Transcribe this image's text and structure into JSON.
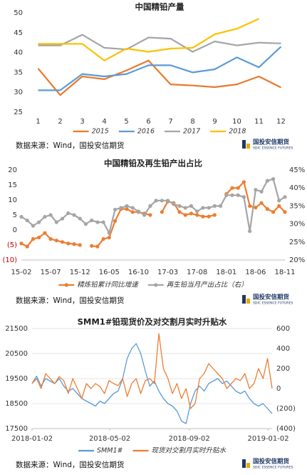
{
  "chart_data": [
    {
      "type": "line",
      "title": "中国精铅产量",
      "source": "数据来源：Wind，国投安信期货",
      "logo_name": "国投安信期货",
      "logo_sub": "SDIC ESSENCE FUTURES",
      "categories": [
        "1",
        "2",
        "3",
        "4",
        "5",
        "6",
        "7",
        "8",
        "9",
        "10",
        "11",
        "12"
      ],
      "ylim": [
        25,
        50
      ],
      "yticks": [
        25,
        30,
        35,
        40,
        45,
        50
      ],
      "grid": false,
      "legend": "bottom",
      "series": [
        {
          "name": "2015",
          "color": "#e8792b",
          "values": [
            36,
            29.3,
            34,
            33.3,
            35.5,
            38,
            32,
            31.7,
            31.3,
            32,
            34,
            31.2
          ]
        },
        {
          "name": "2016",
          "color": "#5b9bd5",
          "values": [
            30.5,
            30.5,
            34.6,
            34,
            34.6,
            36.8,
            36.8,
            35,
            35.8,
            38.8,
            36.3,
            41.5
          ]
        },
        {
          "name": "2017",
          "color": "#a5a5a5",
          "values": [
            41.8,
            41.8,
            44.5,
            41.2,
            40.8,
            43.8,
            43.5,
            40.2,
            42.8,
            41.8,
            42.5,
            42.3
          ]
        },
        {
          "name": "2018",
          "color": "#ffc000",
          "values": [
            42.2,
            42.2,
            42.2,
            38,
            41,
            40.2,
            41,
            41.2,
            44.6,
            46,
            48.5,
            null
          ]
        }
      ]
    },
    {
      "type": "line",
      "title": "中国精铅及再生铅产出占比",
      "source": "数据来源：Wind，国投安信期货",
      "logo_name": "国投安信期货",
      "logo_sub": "SDIC ESSENCE FUTURES",
      "categories": [
        "15-02",
        null,
        null,
        null,
        null,
        "15-07",
        null,
        null,
        null,
        null,
        "15-12",
        null,
        null,
        null,
        null,
        "16-05",
        null,
        null,
        null,
        null,
        "16-10",
        null,
        null,
        null,
        null,
        "17-03",
        null,
        null,
        null,
        null,
        "17-08",
        null,
        null,
        null,
        null,
        "18-01",
        null,
        null,
        null,
        null,
        "18-06",
        null,
        null,
        null,
        null,
        "18-11"
      ],
      "ylim": [
        -10,
        20
      ],
      "yticks": [
        {
          "value": -10,
          "label": "(10)"
        },
        {
          "value": -5,
          "label": "(5)"
        },
        0,
        5,
        10,
        15,
        20
      ],
      "negative_tick_color": "#c00000",
      "y2lim": [
        20,
        45
      ],
      "y2ticks": [
        {
          "value": 20,
          "label": "20%"
        },
        {
          "value": 25,
          "label": "25%"
        },
        {
          "value": 30,
          "label": "30%"
        },
        {
          "value": 35,
          "label": "35%"
        },
        {
          "value": 40,
          "label": "40%"
        },
        {
          "value": 45,
          "label": "45%"
        }
      ],
      "grid": false,
      "legend": "bottom",
      "markers": true,
      "series": [
        {
          "name": "精炼铅累计同比增速",
          "color": "#ed7d31",
          "values": [
            -4.5,
            -5.5,
            -3,
            -2.5,
            -1,
            -3,
            -3.5,
            -4,
            -4.5,
            -4.7,
            -5,
            null,
            -5.3,
            -5.5,
            -3,
            -2.5,
            3,
            7,
            7,
            6,
            6,
            5.5,
            5,
            null,
            6,
            9.5,
            9,
            6,
            5,
            5.5,
            5,
            4.5,
            4.5,
            5,
            null,
            12,
            14,
            14,
            16,
            8,
            7.5,
            9,
            7,
            6,
            8,
            6
          ]
        },
        {
          "name": "再生铅当月产出占比（右）",
          "color": "#a5a5a5",
          "axis": "y2",
          "values": [
            32,
            31,
            29.5,
            30.5,
            32,
            32.5,
            30.5,
            31.5,
            33,
            32.5,
            31.5,
            30,
            31,
            30.5,
            30.5,
            27.5,
            34,
            34.5,
            35,
            34.5,
            33.5,
            32.5,
            35,
            36.5,
            36.5,
            36.5,
            35.5,
            35,
            34.5,
            35,
            33.5,
            34.5,
            34.5,
            35,
            35,
            38,
            38,
            38,
            37.5,
            28,
            39.5,
            39,
            42,
            42.5,
            36.5,
            37.5
          ]
        }
      ]
    },
    {
      "type": "line",
      "title": "SMM1#铅现货价及对交割月实时升贴水",
      "source": "数据来源：Wind，国投安信期货",
      "logo_name": "国投安信期货",
      "logo_sub": "SDIC ESSENCE FUTURES",
      "x": [
        "2018-01-02",
        "2018-01-09",
        "2018-01-16",
        "2018-01-23",
        "2018-01-30",
        "2018-02-06",
        "2018-02-13",
        "2018-02-20",
        "2018-02-27",
        "2018-03-06",
        "2018-03-13",
        "2018-03-20",
        "2018-03-27",
        "2018-04-03",
        "2018-04-10",
        "2018-04-17",
        "2018-04-24",
        "2018-05-01",
        "2018-05-08",
        "2018-05-15",
        "2018-05-22",
        "2018-05-29",
        "2018-06-05",
        "2018-06-12",
        "2018-06-19",
        "2018-06-26",
        "2018-07-03",
        "2018-07-10",
        "2018-07-17",
        "2018-07-24",
        "2018-07-31",
        "2018-08-07",
        "2018-08-14",
        "2018-08-21",
        "2018-08-28",
        "2018-09-04",
        "2018-09-11",
        "2018-09-18",
        "2018-09-25",
        "2018-10-02",
        "2018-10-09",
        "2018-10-16",
        "2018-10-23",
        "2018-10-30",
        "2018-11-06",
        "2018-11-13",
        "2018-11-20",
        "2018-11-27",
        "2018-12-04",
        "2018-12-11",
        "2018-12-18",
        "2018-12-25",
        "2019-01-01",
        "2019-01-08"
      ],
      "xlim": [
        "2018-01-02",
        "2019-01-08"
      ],
      "xticks": [
        "2018-01-02",
        "2018-05-02",
        "2018-09-02",
        "2019-01-02"
      ],
      "ylim": [
        17500,
        21500
      ],
      "yticks": [
        17500,
        18500,
        19500,
        20500,
        21500
      ],
      "y2lim": [
        -400,
        600
      ],
      "y2ticks": [
        {
          "value": -400,
          "label": "(400)"
        },
        {
          "value": -200,
          "label": "(200)"
        },
        0,
        200,
        400,
        600
      ],
      "grid": true,
      "legend": "bottom",
      "series": [
        {
          "name": "SMM1#",
          "color": "#5b9bd5",
          "values": [
            19300,
            19600,
            19200,
            19500,
            19400,
            19300,
            19500,
            19200,
            19000,
            19100,
            18900,
            18700,
            18600,
            18500,
            18400,
            18600,
            18500,
            18700,
            18900,
            19000,
            19500,
            20300,
            20700,
            20900,
            20500,
            19800,
            19200,
            19400,
            19000,
            18700,
            18500,
            18400,
            18200,
            17800,
            17700,
            18500,
            19000,
            19200,
            19000,
            19300,
            19400,
            19500,
            19300,
            19400,
            19200,
            19000,
            18900,
            19000,
            18700,
            18500,
            18400,
            18500,
            18300,
            18100
          ]
        },
        {
          "name": "现货对交割月实时升贴水",
          "color": "#ed7d31",
          "axis": "y2",
          "values": [
            50,
            100,
            0,
            150,
            100,
            50,
            120,
            80,
            -50,
            100,
            0,
            -100,
            50,
            0,
            50,
            20,
            -50,
            80,
            50,
            30,
            100,
            -80,
            50,
            100,
            -50,
            80,
            100,
            50,
            550,
            200,
            100,
            -50,
            50,
            -100,
            0,
            -200,
            -150,
            100,
            150,
            250,
            200,
            150,
            100,
            0,
            50,
            100,
            80,
            150,
            0,
            50,
            200,
            100,
            300,
            0
          ]
        }
      ]
    }
  ]
}
